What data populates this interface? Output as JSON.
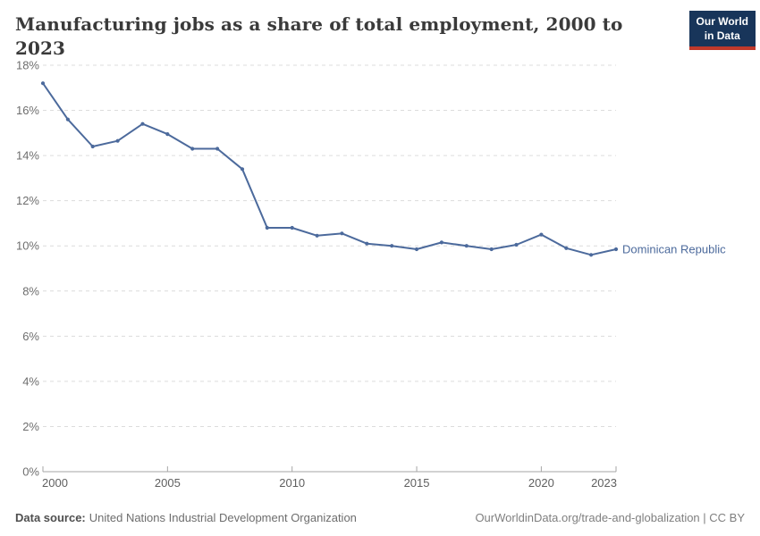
{
  "header": {
    "title": "Manufacturing jobs as a share of total employment, 2000 to 2023",
    "logo_line1": "Our World",
    "logo_line2": "in Data"
  },
  "colors": {
    "line": "#4c6a9c",
    "grid": "#dcdcdc",
    "axis": "#a6a6a6",
    "y_tick_text": "#6e6e6e",
    "x_tick_text": "#5f5f5f",
    "title_text": "#3a3a3a",
    "logo_bg": "#18355a",
    "logo_accent": "#c0392b"
  },
  "chart_data": {
    "type": "line",
    "title": "Manufacturing jobs as a share of total employment, 2000 to 2023",
    "xlabel": "",
    "ylabel": "",
    "x": [
      2000,
      2001,
      2002,
      2003,
      2004,
      2005,
      2006,
      2007,
      2008,
      2009,
      2010,
      2011,
      2012,
      2013,
      2014,
      2015,
      2016,
      2017,
      2018,
      2019,
      2020,
      2021,
      2022,
      2023
    ],
    "series": [
      {
        "name": "Dominican Republic",
        "values": [
          17.2,
          15.6,
          14.4,
          14.65,
          15.4,
          14.95,
          14.3,
          14.3,
          13.4,
          10.8,
          10.8,
          10.45,
          10.55,
          10.1,
          10.0,
          9.85,
          10.15,
          10.0,
          9.85,
          10.05,
          10.5,
          9.9,
          9.6,
          9.85
        ]
      }
    ],
    "ylim": [
      0,
      18
    ],
    "y_ticks": [
      0,
      2,
      4,
      6,
      8,
      10,
      12,
      14,
      16,
      18
    ],
    "y_tick_suffix": "%",
    "x_ticks": [
      2000,
      2005,
      2010,
      2015,
      2020,
      2023
    ],
    "grid": "horizontal-dashed",
    "legend_position": "end-of-line-label"
  },
  "footer": {
    "source_label": "Data source:",
    "source_value": "United Nations Industrial Development Organization",
    "credit": "OurWorldinData.org/trade-and-globalization | CC BY"
  }
}
